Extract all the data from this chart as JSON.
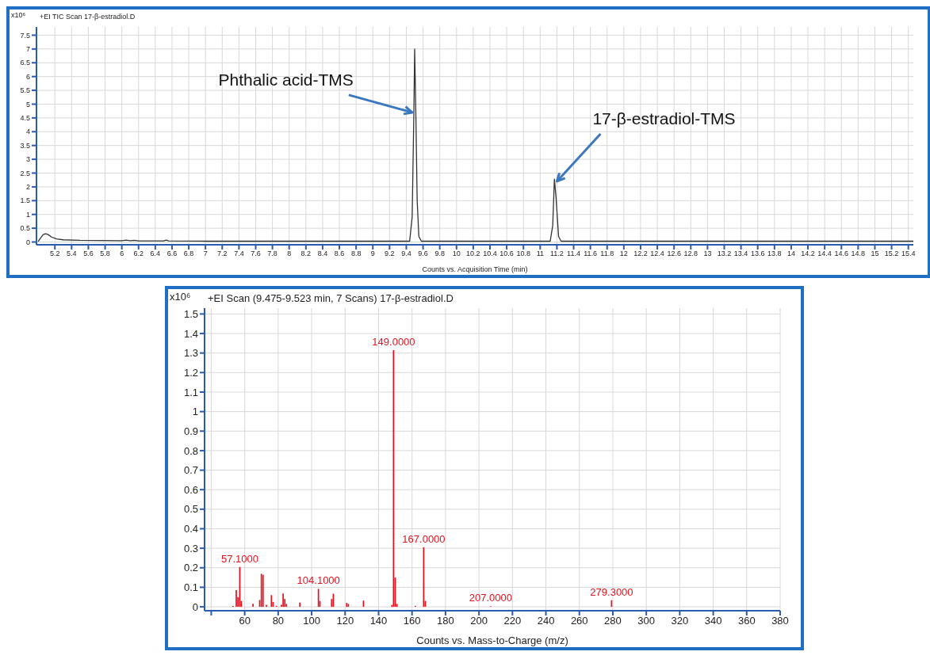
{
  "chart_data": [
    {
      "type": "line",
      "title": "+EI TIC Scan 17-β-estradiol.D",
      "xlabel": "Counts vs. Acquisition Time (min)",
      "ylabel": "x10⁶",
      "color": "#333333",
      "marker": "none",
      "grid": true,
      "x": [
        5.0,
        5.03,
        5.06,
        5.09,
        5.12,
        5.16,
        5.22,
        5.3,
        5.5,
        6.0,
        6.05,
        6.1,
        6.15,
        6.2,
        6.5,
        6.53,
        6.56,
        7.0,
        8.0,
        9.0,
        9.44,
        9.47,
        9.49,
        9.5,
        9.505,
        9.515,
        9.53,
        9.55,
        9.58,
        10.5,
        11.12,
        11.15,
        11.17,
        11.19,
        11.22,
        11.25,
        12.0,
        15.46
      ],
      "values": [
        0.02,
        0.15,
        0.27,
        0.3,
        0.27,
        0.18,
        0.11,
        0.08,
        0.06,
        0.05,
        0.07,
        0.05,
        0.06,
        0.04,
        0.04,
        0.07,
        0.04,
        0.03,
        0.03,
        0.03,
        0.03,
        0.9,
        4.6,
        7.0,
        6.2,
        4.5,
        1.5,
        0.2,
        0.03,
        0.03,
        0.03,
        0.6,
        2.28,
        1.6,
        0.2,
        0.03,
        0.03,
        0.03
      ],
      "xlim": [
        4.98,
        15.46
      ],
      "ylim": [
        -0.1,
        7.8
      ],
      "xticks": [
        5.2,
        5.4,
        5.6,
        5.8,
        6,
        6.2,
        6.4,
        6.6,
        6.8,
        7,
        7.2,
        7.4,
        7.6,
        7.8,
        8,
        8.2,
        8.4,
        8.6,
        8.8,
        9,
        9.2,
        9.4,
        9.6,
        9.8,
        10,
        10.2,
        10.4,
        10.6,
        10.8,
        11,
        11.2,
        11.4,
        11.6,
        11.8,
        12,
        12.2,
        12.4,
        12.6,
        12.8,
        13,
        13.2,
        13.4,
        13.6,
        13.8,
        14,
        14.2,
        14.4,
        14.6,
        14.8,
        15,
        15.2,
        15.4
      ],
      "yticks": [
        0,
        0.5,
        1,
        1.5,
        2,
        2.5,
        3,
        3.5,
        4,
        4.5,
        5,
        5.5,
        6,
        6.5,
        7,
        7.5
      ],
      "annotations": [
        {
          "text": "Phthalic acid-TMS",
          "x": 9.47,
          "y": 4.7
        },
        {
          "text": "17-β-estradiol-TMS",
          "x": 11.2,
          "y": 2.2
        }
      ]
    },
    {
      "type": "bar",
      "title": "+EI Scan (9.475-9.523 min, 7 Scans) 17-β-estradiol.D",
      "xlabel": "Counts vs. Mass-to-Charge (m/z)",
      "ylabel": "x10⁶",
      "color": "#e8101c",
      "grid": true,
      "x": [
        53,
        55,
        56,
        57.1,
        58,
        65,
        69,
        70,
        71,
        73,
        76,
        77,
        79,
        82,
        83,
        84,
        85,
        93,
        104.1,
        105,
        112,
        113,
        121,
        122,
        131,
        148,
        149,
        150,
        151,
        162,
        167,
        168,
        207,
        279.3
      ],
      "values": [
        0.005,
        0.085,
        0.05,
        0.204,
        0.03,
        0.015,
        0.035,
        0.169,
        0.164,
        0.01,
        0.06,
        0.025,
        0.005,
        0.01,
        0.068,
        0.04,
        0.015,
        0.022,
        0.092,
        0.03,
        0.04,
        0.067,
        0.02,
        0.015,
        0.032,
        0.01,
        1.315,
        0.15,
        0.015,
        0.005,
        0.305,
        0.03,
        0.003,
        0.034
      ],
      "annotations": [
        {
          "text": "57.1000",
          "x": 57.1,
          "y": 0.204
        },
        {
          "text": "104.1000",
          "x": 104.1,
          "y": 0.092
        },
        {
          "text": "149.0000",
          "x": 149,
          "y": 1.315
        },
        {
          "text": "167.0000",
          "x": 167,
          "y": 0.305
        },
        {
          "text": "207.0000",
          "x": 207,
          "y": 0.003
        },
        {
          "text": "279.3000",
          "x": 279.3,
          "y": 0.034
        }
      ],
      "xlim": [
        36,
        380
      ],
      "ylim": [
        -0.02,
        1.53
      ],
      "xticks": [
        {
          "value": 40,
          "label": null
        },
        60,
        80,
        100,
        120,
        140,
        160,
        180,
        200,
        220,
        240,
        260,
        280,
        300,
        320,
        340,
        360,
        380
      ],
      "yticks": [
        0,
        0.1,
        0.2,
        0.3,
        0.4,
        0.5,
        0.6,
        0.7,
        0.8,
        0.9,
        1,
        1.1,
        1.2,
        1.3,
        1.4,
        1.5
      ]
    }
  ]
}
